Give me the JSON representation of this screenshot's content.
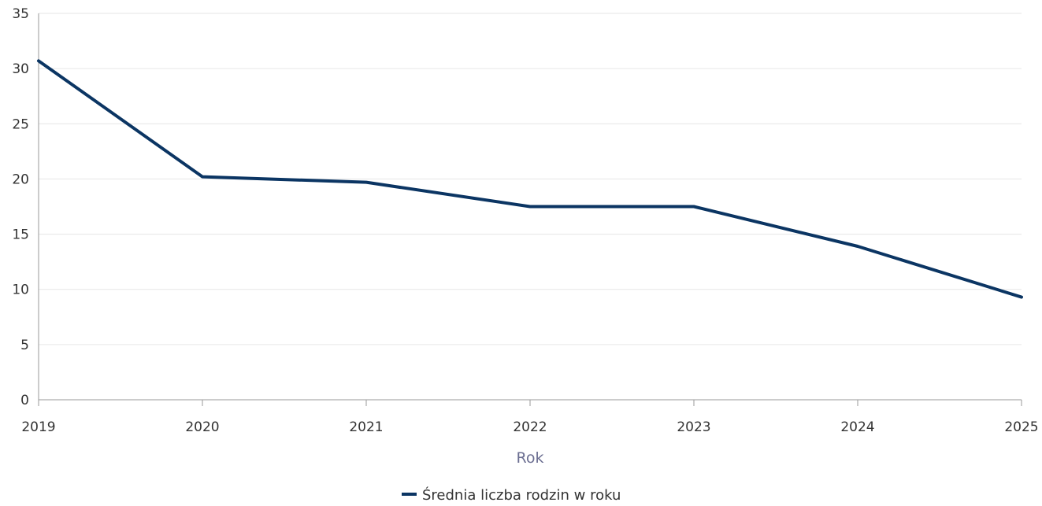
{
  "chart_data": {
    "type": "line",
    "title": "",
    "xlabel": "Rok",
    "ylabel": "",
    "x": [
      "2019",
      "2020",
      "2021",
      "2022",
      "2023",
      "2024",
      "2025"
    ],
    "series": [
      {
        "name": "Średnia liczba rodzin w roku",
        "color": "#0b3563",
        "values": [
          30.7,
          20.2,
          19.7,
          17.5,
          17.5,
          13.9,
          9.3
        ]
      }
    ],
    "ylim": [
      0,
      35
    ],
    "yticks": [
      "0",
      "5",
      "10",
      "15",
      "20",
      "25",
      "30",
      "35"
    ],
    "grid": true,
    "legend": "bottom"
  }
}
